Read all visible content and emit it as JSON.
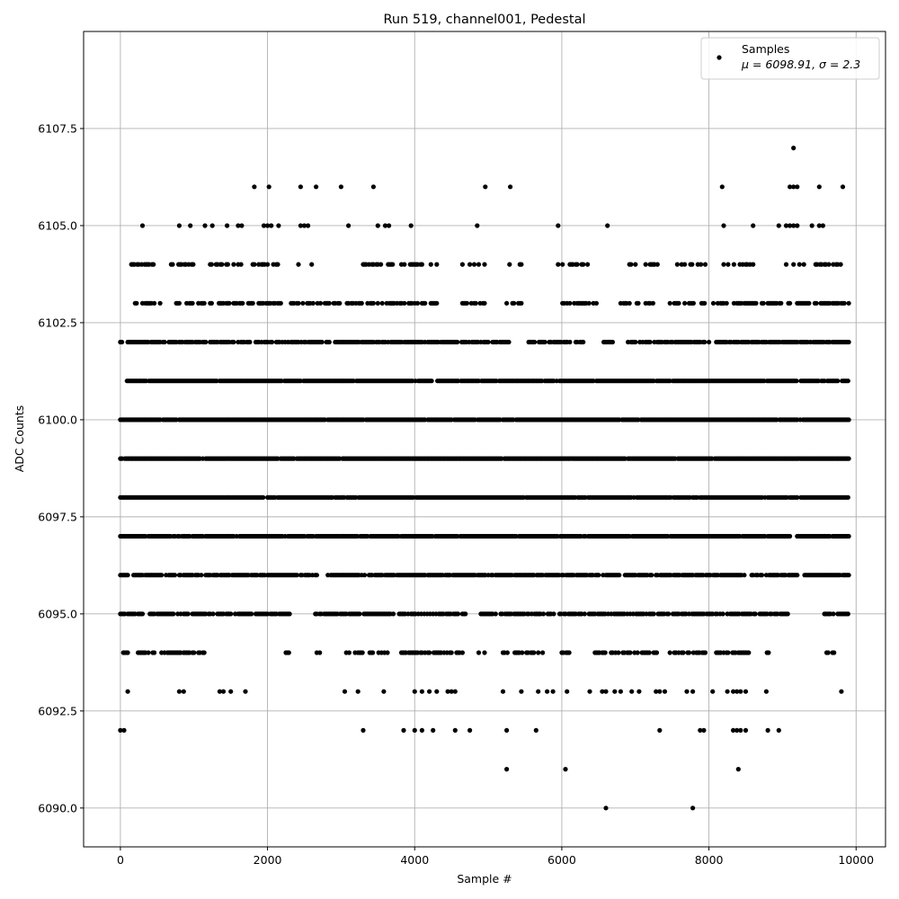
{
  "chart_data": {
    "type": "scatter",
    "title": "Run 519, channel001, Pedestal",
    "xlabel": "Sample #",
    "ylabel": "ADC Counts",
    "xlim": [
      -500,
      10400
    ],
    "ylim": [
      6089.0,
      6110.0
    ],
    "xticks": [
      0,
      2000,
      4000,
      6000,
      8000,
      10000
    ],
    "xtick_labels": [
      "0",
      "2000",
      "4000",
      "6000",
      "8000",
      "10000"
    ],
    "yticks": [
      6090.0,
      6092.5,
      6095.0,
      6097.5,
      6100.0,
      6102.5,
      6105.0,
      6107.5
    ],
    "ytick_labels": [
      "6090.0",
      "6092.5",
      "6095.0",
      "6097.5",
      "6100.0",
      "6102.5",
      "6105.0",
      "6107.5"
    ],
    "grid": true,
    "legend": {
      "position": "top-right",
      "entries": [
        {
          "label": "Samples",
          "stat_line": "μ = 6098.91, σ = 2.3"
        }
      ]
    },
    "marker_color": "#000000",
    "series": [
      {
        "name": "Samples",
        "levels": [
          {
            "y": 6090,
            "x": [
              6600,
              7780
            ]
          },
          {
            "y": 6091,
            "x": [
              5250,
              6050,
              8400
            ]
          },
          {
            "y": 6092,
            "x": [
              0,
              50,
              3300,
              3850,
              4000,
              4100,
              4250,
              4550,
              4750,
              5250,
              5650,
              7330,
              7880,
              7930,
              8330,
              8380,
              8430,
              8500,
              8800,
              8950
            ]
          },
          {
            "y": 6093,
            "x": [
              100,
              800,
              860,
              1350,
              1400,
              1500,
              1700,
              3050,
              3230,
              3580,
              4000,
              4100,
              4200,
              4300,
              4450,
              4500,
              4550,
              5200,
              5450,
              5680,
              5800,
              5880,
              6070,
              6380,
              6550,
              6600,
              6720,
              6800,
              6950,
              7050,
              7280,
              7330,
              7400,
              7700,
              7780,
              8050,
              8250,
              8330,
              8380,
              8430,
              8500,
              8780,
              9800
            ]
          },
          {
            "y": 6107,
            "x": [
              9150
            ]
          },
          {
            "y": 6106,
            "x": [
              1820,
              2020,
              2450,
              2660,
              3000,
              3440,
              4960,
              5300,
              8180,
              9100,
              9150,
              9200,
              9500,
              9820
            ]
          },
          {
            "y": 6105,
            "x": [
              300,
              800,
              950,
              1150,
              1250,
              1450,
              1600,
              1650,
              1950,
              2000,
              2050,
              2150,
              2450,
              2500,
              2550,
              3100,
              3500,
              3600,
              3650,
              3950,
              4850,
              5950,
              6620,
              8200,
              8600,
              8950,
              9050,
              9100,
              9150,
              9200,
              9400,
              9500,
              9550
            ]
          }
        ],
        "dense_levels": [
          {
            "y": 6094,
            "coverage": [
              [
                0,
                100
              ],
              [
                200,
                1250
              ],
              [
                2250,
                2350
              ],
              [
                2650,
                2750
              ],
              [
                3050,
                3650
              ],
              [
                3800,
                4500
              ],
              [
                4550,
                4650
              ],
              [
                4850,
                4950
              ],
              [
                5200,
                5750
              ],
              [
                6000,
                6100
              ],
              [
                6450,
                7300
              ],
              [
                7450,
                8000
              ],
              [
                8100,
                8550
              ],
              [
                8750,
                8850
              ],
              [
                9600,
                9700
              ]
            ],
            "density": 0.6
          },
          {
            "y": 6095,
            "coverage": [
              [
                0,
                300
              ],
              [
                400,
                2300
              ],
              [
                2650,
                4700
              ],
              [
                4900,
                5100
              ],
              [
                5150,
                5900
              ],
              [
                5950,
                8200
              ],
              [
                8250,
                9100
              ],
              [
                9550,
                9900
              ]
            ],
            "density": 0.75
          },
          {
            "y": 6096,
            "coverage": [
              [
                0,
                2400
              ],
              [
                2450,
                2700
              ],
              [
                2800,
                9200
              ],
              [
                9300,
                9900
              ]
            ],
            "density": 0.85
          },
          {
            "y": 6097,
            "coverage": [
              [
                0,
                9100
              ],
              [
                9200,
                9900
              ]
            ],
            "density": 0.95
          },
          {
            "y": 6098,
            "coverage": [
              [
                0,
                1950
              ],
              [
                2000,
                9200
              ],
              [
                9250,
                9900
              ]
            ],
            "density": 0.97
          },
          {
            "y": 6099,
            "coverage": [
              [
                0,
                9900
              ]
            ],
            "density": 0.98
          },
          {
            "y": 6100,
            "coverage": [
              [
                0,
                9900
              ]
            ],
            "density": 0.97
          },
          {
            "y": 6101,
            "coverage": [
              [
                50,
                9900
              ]
            ],
            "density": 0.92
          },
          {
            "y": 6102,
            "coverage": [
              [
                0,
                30
              ],
              [
                100,
                5300
              ],
              [
                5550,
                6300
              ],
              [
                6550,
                6700
              ],
              [
                6900,
                8000
              ],
              [
                8100,
                9900
              ]
            ],
            "density": 0.78
          },
          {
            "y": 6103,
            "coverage": [
              [
                100,
                550
              ],
              [
                700,
                2200
              ],
              [
                2300,
                4300
              ],
              [
                4650,
                5000
              ],
              [
                5250,
                5450
              ],
              [
                5950,
                6500
              ],
              [
                6800,
                7250
              ],
              [
                7450,
                7800
              ],
              [
                7900,
                9900
              ]
            ],
            "density": 0.6
          },
          {
            "y": 6104,
            "coverage": [
              [
                150,
                450
              ],
              [
                650,
                1000
              ],
              [
                1100,
                2150
              ],
              [
                2400,
                2700
              ],
              [
                3300,
                3700
              ],
              [
                3800,
                4300
              ],
              [
                4650,
                4950
              ],
              [
                5250,
                5500
              ],
              [
                5950,
                6450
              ],
              [
                6900,
                7300
              ],
              [
                7550,
                7950
              ],
              [
                8200,
                8600
              ],
              [
                9050,
                9300
              ],
              [
                9450,
                9850
              ]
            ],
            "density": 0.45
          }
        ]
      }
    ]
  }
}
